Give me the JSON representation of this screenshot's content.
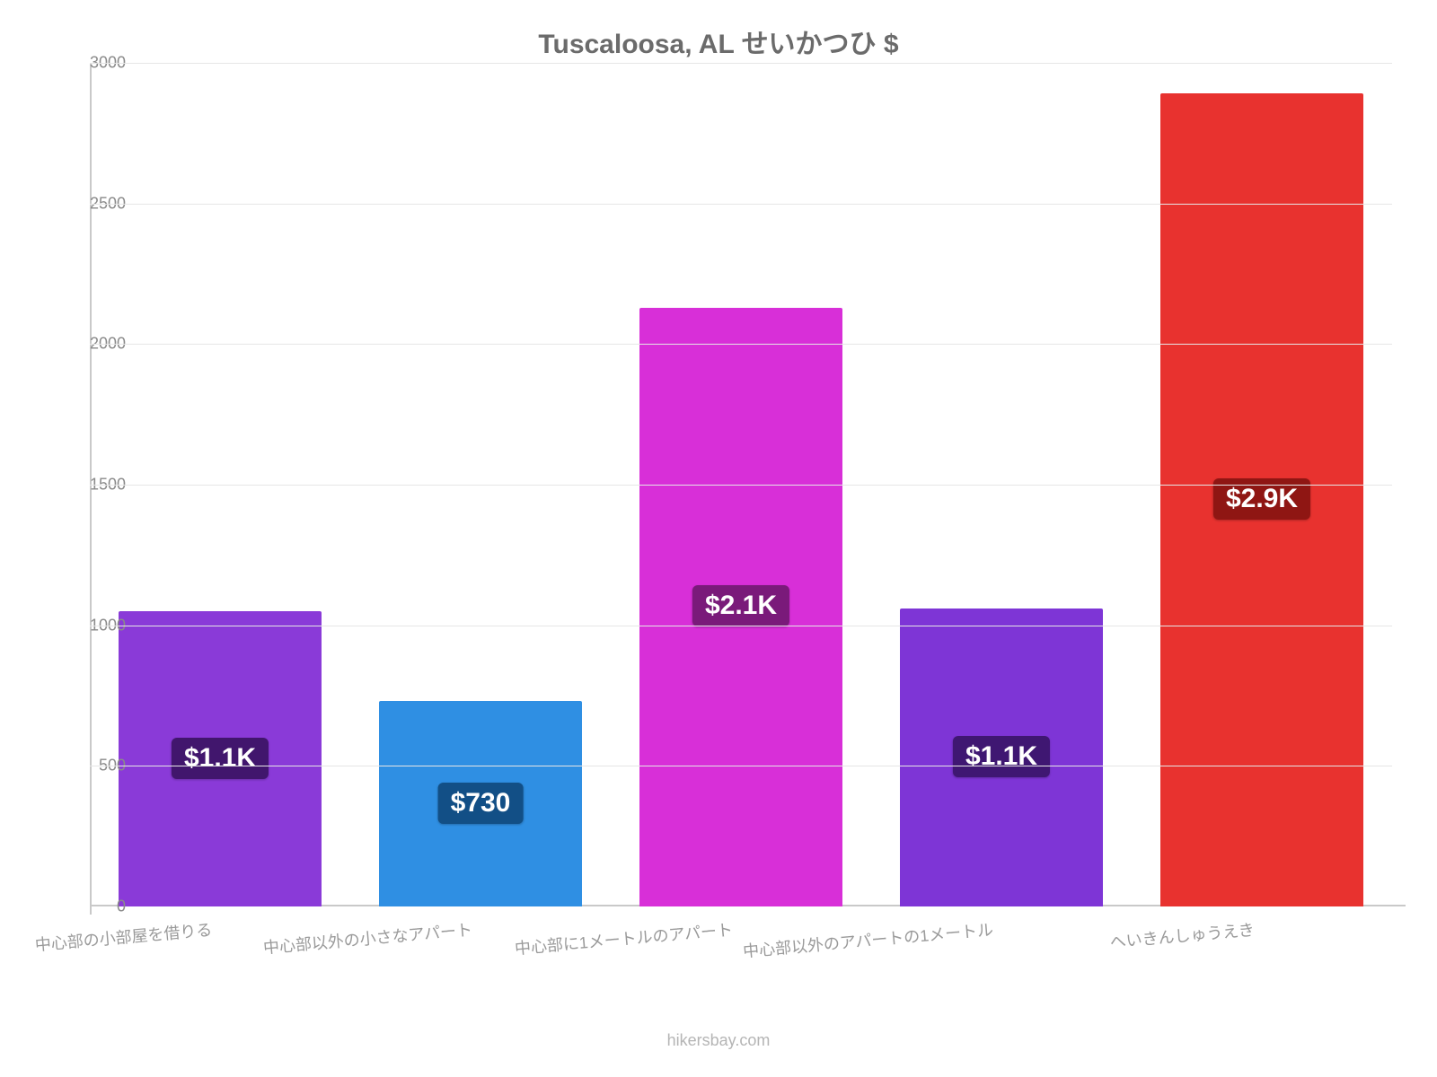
{
  "chart": {
    "type": "bar",
    "title": "Tuscaloosa, AL せいかつひ $",
    "title_fontsize": 30,
    "title_color": "#6b6b6b",
    "background_color": "#ffffff",
    "grid_color": "#e6e6e6",
    "axis_color": "#c9c9c9",
    "y": {
      "min": 0,
      "max": 3000,
      "tick_step": 500,
      "ticks": [
        "0",
        "500",
        "1000",
        "1500",
        "2000",
        "2500",
        "3000"
      ],
      "label_fontsize": 18,
      "label_color": "#8a8a8a"
    },
    "x": {
      "label_fontsize": 18,
      "label_color": "#9a9a9a",
      "label_rotation_deg": -5
    },
    "bars": [
      {
        "category": "中心部の小部屋を借りる",
        "value": 1050,
        "display": "$1.1K",
        "bar_color": "#8a3ad8",
        "badge_bg": "#41166d"
      },
      {
        "category": "中心部以外の小さなアパート",
        "value": 730,
        "display": "$730",
        "bar_color": "#2f8fe3",
        "badge_bg": "#124f86"
      },
      {
        "category": "中心部に1メートルのアパート",
        "value": 2130,
        "display": "$2.1K",
        "bar_color": "#d82fd8",
        "badge_bg": "#7a1a7a"
      },
      {
        "category": "中心部以外のアパートの1メートル",
        "value": 1060,
        "display": "$1.1K",
        "bar_color": "#7e35d6",
        "badge_bg": "#3f1772"
      },
      {
        "category": "へいきんしゅうえき",
        "value": 2890,
        "display": "$2.9K",
        "bar_color": "#e8322f",
        "badge_bg": "#8f1613"
      }
    ],
    "bar_width_ratio": 0.78,
    "value_label_fontsize": 30,
    "attribution": "hikersbay.com",
    "attribution_color": "#b5b5b5"
  }
}
